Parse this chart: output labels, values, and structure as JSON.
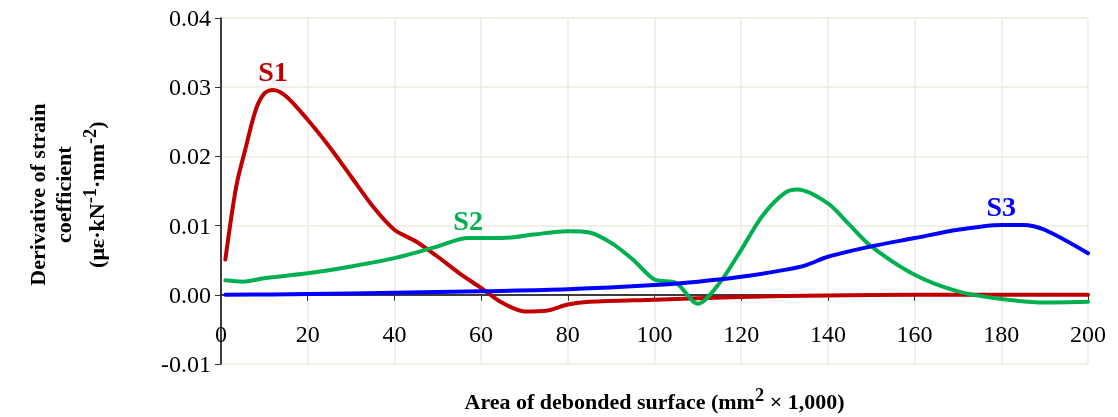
{
  "chart_data": {
    "type": "line",
    "xlabel": "Area of debonded surface (mm$^{2}$ × 1,000)",
    "ylabel": "Derivative of strain coefficient (με·kN$^{-1}$·mm$^{-2}$)",
    "xlim": [
      0,
      200
    ],
    "xticks": [
      0,
      20,
      40,
      60,
      80,
      100,
      120,
      140,
      160,
      180,
      200
    ],
    "ylim": [
      -0.01,
      0.04
    ],
    "yticks": [
      -0.01,
      {
        "value": 0,
        "label": "0.00"
      },
      0.01,
      0.02,
      0.03,
      0.04
    ],
    "grid": true,
    "legend": false,
    "marker": "none",
    "line_style": "solid",
    "series": [
      {
        "name": "S1",
        "color": "#c00000",
        "x": [
          1,
          3.5,
          5.6,
          8,
          10,
          12,
          15,
          20,
          25,
          30,
          35,
          40,
          45,
          50,
          55,
          60,
          65,
          70,
          75,
          80,
          85,
          100,
          120,
          140,
          160,
          180,
          200
        ],
        "values": [
          0.0051,
          0.0156,
          0.021,
          0.0267,
          0.0291,
          0.0296,
          0.0287,
          0.0253,
          0.0214,
          0.0171,
          0.0128,
          0.0094,
          0.0077,
          0.0055,
          0.0031,
          0.001,
          -0.0012,
          -0.0024,
          -0.0023,
          -0.0014,
          -0.001,
          -0.0007,
          -0.0003,
          -0.0001,
          0,
          0,
          0
        ]
      },
      {
        "name": "S2",
        "color": "#00b050",
        "x": [
          1,
          5,
          10,
          20,
          30,
          40,
          50,
          57,
          65,
          72,
          80,
          85,
          90,
          95,
          100,
          105,
          110,
          115,
          120,
          125,
          130,
          133,
          140,
          145,
          150,
          160,
          170,
          180,
          190,
          200
        ],
        "values": [
          0.0021,
          0.0019,
          0.0024,
          0.0031,
          0.0041,
          0.0053,
          0.007,
          0.0082,
          0.0082,
          0.0087,
          0.0092,
          0.009,
          0.0075,
          0.0051,
          0.0022,
          0.0017,
          -0.0013,
          0.0017,
          0.0065,
          0.0115,
          0.0147,
          0.0152,
          0.0132,
          0.0101,
          0.007,
          0.0029,
          0.0005,
          -0.0006,
          -0.0011,
          -0.001
        ]
      },
      {
        "name": "S3",
        "color": "#0000ff",
        "x": [
          1,
          20,
          40,
          60,
          80,
          100,
          110,
          120,
          130,
          135,
          140,
          150,
          160,
          170,
          180,
          185,
          190,
          200
        ],
        "values": [
          0,
          0.0001,
          0.0003,
          0.0005,
          0.0008,
          0.0014,
          0.0019,
          0.0026,
          0.0036,
          0.0043,
          0.0055,
          0.007,
          0.0082,
          0.0094,
          0.0101,
          0.0101,
          0.0094,
          0.006
        ]
      }
    ]
  }
}
